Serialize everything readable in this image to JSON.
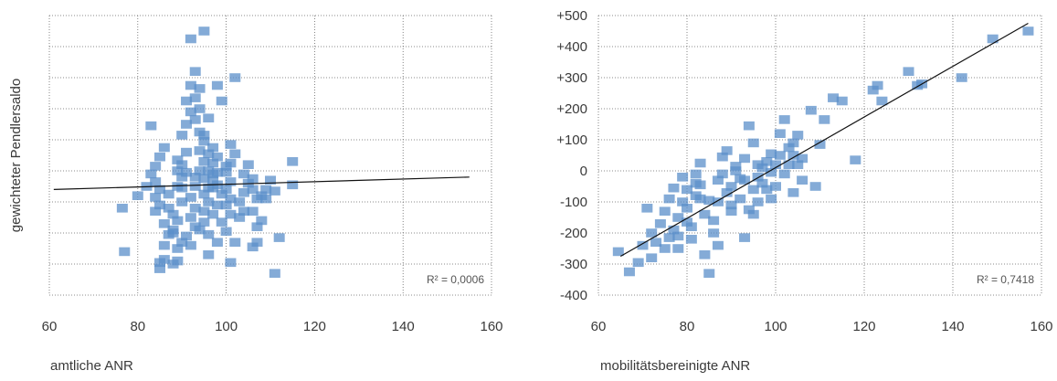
{
  "chart_data": [
    {
      "type": "scatter",
      "xlabel": "amtliche ANR",
      "ylabel": "gewichteter Pendlersaldo",
      "xlim": [
        60,
        160
      ],
      "ylim": [
        -400,
        500
      ],
      "xticks": [
        "60",
        "80",
        "100",
        "120",
        "140",
        "160"
      ],
      "grid": true,
      "marker_color": "#5b8fc9",
      "trend_color": "#111111",
      "annotation": "R² = 0,0006",
      "trendline": {
        "x": [
          61,
          155
        ],
        "y": [
          -60,
          -20
        ]
      },
      "points": [
        [
          77,
          -260
        ],
        [
          76.5,
          -120
        ],
        [
          83,
          145
        ],
        [
          80,
          -80
        ],
        [
          82,
          -50
        ],
        [
          85,
          -315
        ],
        [
          85,
          -295
        ],
        [
          86,
          -240
        ],
        [
          87,
          -205
        ],
        [
          86,
          -170
        ],
        [
          84,
          -130
        ],
        [
          85,
          -110
        ],
        [
          84,
          -85
        ],
        [
          85,
          -60
        ],
        [
          84,
          -35
        ],
        [
          83,
          -10
        ],
        [
          84,
          15
        ],
        [
          85,
          45
        ],
        [
          86,
          75
        ],
        [
          87,
          -75
        ],
        [
          88,
          -140
        ],
        [
          88,
          -190
        ],
        [
          89,
          -250
        ],
        [
          88,
          -300
        ],
        [
          89,
          -290
        ],
        [
          90,
          -230
        ],
        [
          89,
          -160
        ],
        [
          90,
          -100
        ],
        [
          89,
          -50
        ],
        [
          90,
          -20
        ],
        [
          90,
          20
        ],
        [
          91,
          60
        ],
        [
          90,
          115
        ],
        [
          91,
          150
        ],
        [
          92,
          190
        ],
        [
          91,
          225
        ],
        [
          92,
          275
        ],
        [
          93,
          320
        ],
        [
          92,
          425
        ],
        [
          95,
          450
        ],
        [
          94,
          265
        ],
        [
          93,
          235
        ],
        [
          94,
          200
        ],
        [
          93,
          165
        ],
        [
          94,
          125
        ],
        [
          95,
          95
        ],
        [
          94,
          65
        ],
        [
          95,
          30
        ],
        [
          94,
          0
        ],
        [
          95,
          -25
        ],
        [
          93,
          -50
        ],
        [
          92,
          -85
        ],
        [
          93,
          -120
        ],
        [
          92,
          -150
        ],
        [
          93,
          -180
        ],
        [
          91,
          -210
        ],
        [
          92,
          -240
        ],
        [
          94,
          -190
        ],
        [
          95,
          -165
        ],
        [
          95,
          -130
        ],
        [
          96,
          -100
        ],
        [
          95,
          -75
        ],
        [
          96,
          -55
        ],
        [
          97,
          -30
        ],
        [
          96,
          0
        ],
        [
          97,
          25
        ],
        [
          96,
          55
        ],
        [
          97,
          75
        ],
        [
          98,
          45
        ],
        [
          97,
          -10
        ],
        [
          98,
          -45
        ],
        [
          99,
          -75
        ],
        [
          98,
          -110
        ],
        [
          97,
          -140
        ],
        [
          99,
          -165
        ],
        [
          96,
          -270
        ],
        [
          98,
          -230
        ],
        [
          100,
          -195
        ],
        [
          101,
          -140
        ],
        [
          100,
          -110
        ],
        [
          101,
          -90
        ],
        [
          100,
          -60
        ],
        [
          101,
          -35
        ],
        [
          100,
          -5
        ],
        [
          101,
          25
        ],
        [
          102,
          55
        ],
        [
          101,
          85
        ],
        [
          102,
          300
        ],
        [
          98,
          275
        ],
        [
          99,
          225
        ],
        [
          102,
          -230
        ],
        [
          103,
          -150
        ],
        [
          104,
          -130
        ],
        [
          103,
          -100
        ],
        [
          104,
          -70
        ],
        [
          105,
          -40
        ],
        [
          104,
          -10
        ],
        [
          105,
          20
        ],
        [
          106,
          -25
        ],
        [
          106,
          -60
        ],
        [
          107,
          -90
        ],
        [
          106,
          -130
        ],
        [
          108,
          -160
        ],
        [
          107,
          -180
        ],
        [
          107,
          -230
        ],
        [
          106,
          -245
        ],
        [
          108,
          -80
        ],
        [
          109,
          -60
        ],
        [
          110,
          -30
        ],
        [
          109,
          -90
        ],
        [
          111,
          -65
        ],
        [
          112,
          -215
        ],
        [
          111,
          -330
        ],
        [
          115,
          30
        ],
        [
          115,
          -45
        ],
        [
          101,
          -295
        ],
        [
          97,
          -55
        ],
        [
          96,
          170
        ],
        [
          98,
          -5
        ],
        [
          100,
          15
        ],
        [
          88,
          -200
        ],
        [
          87,
          -120
        ],
        [
          89,
          0
        ],
        [
          91,
          -5
        ],
        [
          96,
          -205
        ],
        [
          86,
          -285
        ],
        [
          90,
          -55
        ],
        [
          93,
          -20
        ],
        [
          95,
          115
        ],
        [
          89,
          35
        ]
      ]
    },
    {
      "type": "scatter",
      "xlabel": "mobilitätsbereinigte ANR",
      "ylabel": "",
      "xlim": [
        60,
        160
      ],
      "ylim": [
        -400,
        500
      ],
      "xticks": [
        "60",
        "80",
        "100",
        "120",
        "140",
        "160"
      ],
      "yticks": [
        "-400",
        "-300",
        "-200",
        "-100",
        "0",
        "+100",
        "+200",
        "+300",
        "+400",
        "+500"
      ],
      "grid": true,
      "marker_color": "#5b8fc9",
      "trend_color": "#111111",
      "annotation": "R² = 0,7418",
      "trendline": {
        "x": [
          65,
          157
        ],
        "y": [
          -275,
          475
        ]
      },
      "points": [
        [
          64.5,
          -260
        ],
        [
          67,
          -325
        ],
        [
          69,
          -295
        ],
        [
          70,
          -240
        ],
        [
          71,
          -120
        ],
        [
          72,
          -200
        ],
        [
          72,
          -280
        ],
        [
          73,
          -230
        ],
        [
          74,
          -170
        ],
        [
          75,
          -250
        ],
        [
          75,
          -130
        ],
        [
          76,
          -90
        ],
        [
          77,
          -190
        ],
        [
          77,
          -55
        ],
        [
          78,
          -210
        ],
        [
          78,
          -150
        ],
        [
          79,
          -100
        ],
        [
          79,
          -20
        ],
        [
          80,
          -60
        ],
        [
          80,
          -120
        ],
        [
          81,
          -180
        ],
        [
          81,
          -220
        ],
        [
          82,
          -10
        ],
        [
          82,
          -80
        ],
        [
          83,
          25
        ],
        [
          83,
          -45
        ],
        [
          84,
          -140
        ],
        [
          84,
          -270
        ],
        [
          85,
          -330
        ],
        [
          85,
          -95
        ],
        [
          86,
          -200
        ],
        [
          86,
          -160
        ],
        [
          87,
          -240
        ],
        [
          87,
          -30
        ],
        [
          88,
          -10
        ],
        [
          88,
          45
        ],
        [
          89,
          -70
        ],
        [
          89,
          65
        ],
        [
          90,
          -110
        ],
        [
          90,
          -50
        ],
        [
          91,
          0
        ],
        [
          91,
          15
        ],
        [
          92,
          -90
        ],
        [
          92,
          -25
        ],
        [
          93,
          -215
        ],
        [
          93,
          40
        ],
        [
          94,
          145
        ],
        [
          94,
          -125
        ],
        [
          95,
          -60
        ],
        [
          95,
          90
        ],
        [
          96,
          -20
        ],
        [
          96,
          -100
        ],
        [
          97,
          10
        ],
        [
          97,
          -40
        ],
        [
          98,
          -60
        ],
        [
          98,
          30
        ],
        [
          99,
          55
        ],
        [
          99,
          -90
        ],
        [
          100,
          20
        ],
        [
          100,
          -50
        ],
        [
          101,
          120
        ],
        [
          101,
          50
        ],
        [
          102,
          165
        ],
        [
          102,
          -10
        ],
        [
          103,
          75
        ],
        [
          103,
          20
        ],
        [
          104,
          90
        ],
        [
          104,
          -70
        ],
        [
          105,
          115
        ],
        [
          105,
          20
        ],
        [
          106,
          -30
        ],
        [
          106,
          40
        ],
        [
          108,
          195
        ],
        [
          109,
          -50
        ],
        [
          110,
          85
        ],
        [
          111,
          165
        ],
        [
          113,
          235
        ],
        [
          115,
          225
        ],
        [
          118,
          35
        ],
        [
          122,
          260
        ],
        [
          123,
          275
        ],
        [
          124,
          225
        ],
        [
          130,
          320
        ],
        [
          132,
          275
        ],
        [
          133,
          280
        ],
        [
          142,
          300
        ],
        [
          149,
          425
        ],
        [
          157,
          450
        ],
        [
          90,
          -130
        ],
        [
          83,
          -90
        ],
        [
          80,
          -165
        ],
        [
          78,
          -250
        ],
        [
          76,
          -215
        ],
        [
          82,
          -40
        ],
        [
          87,
          -100
        ],
        [
          93,
          -30
        ],
        [
          96,
          20
        ],
        [
          99,
          -5
        ],
        [
          104,
          50
        ],
        [
          95,
          -140
        ]
      ]
    }
  ]
}
